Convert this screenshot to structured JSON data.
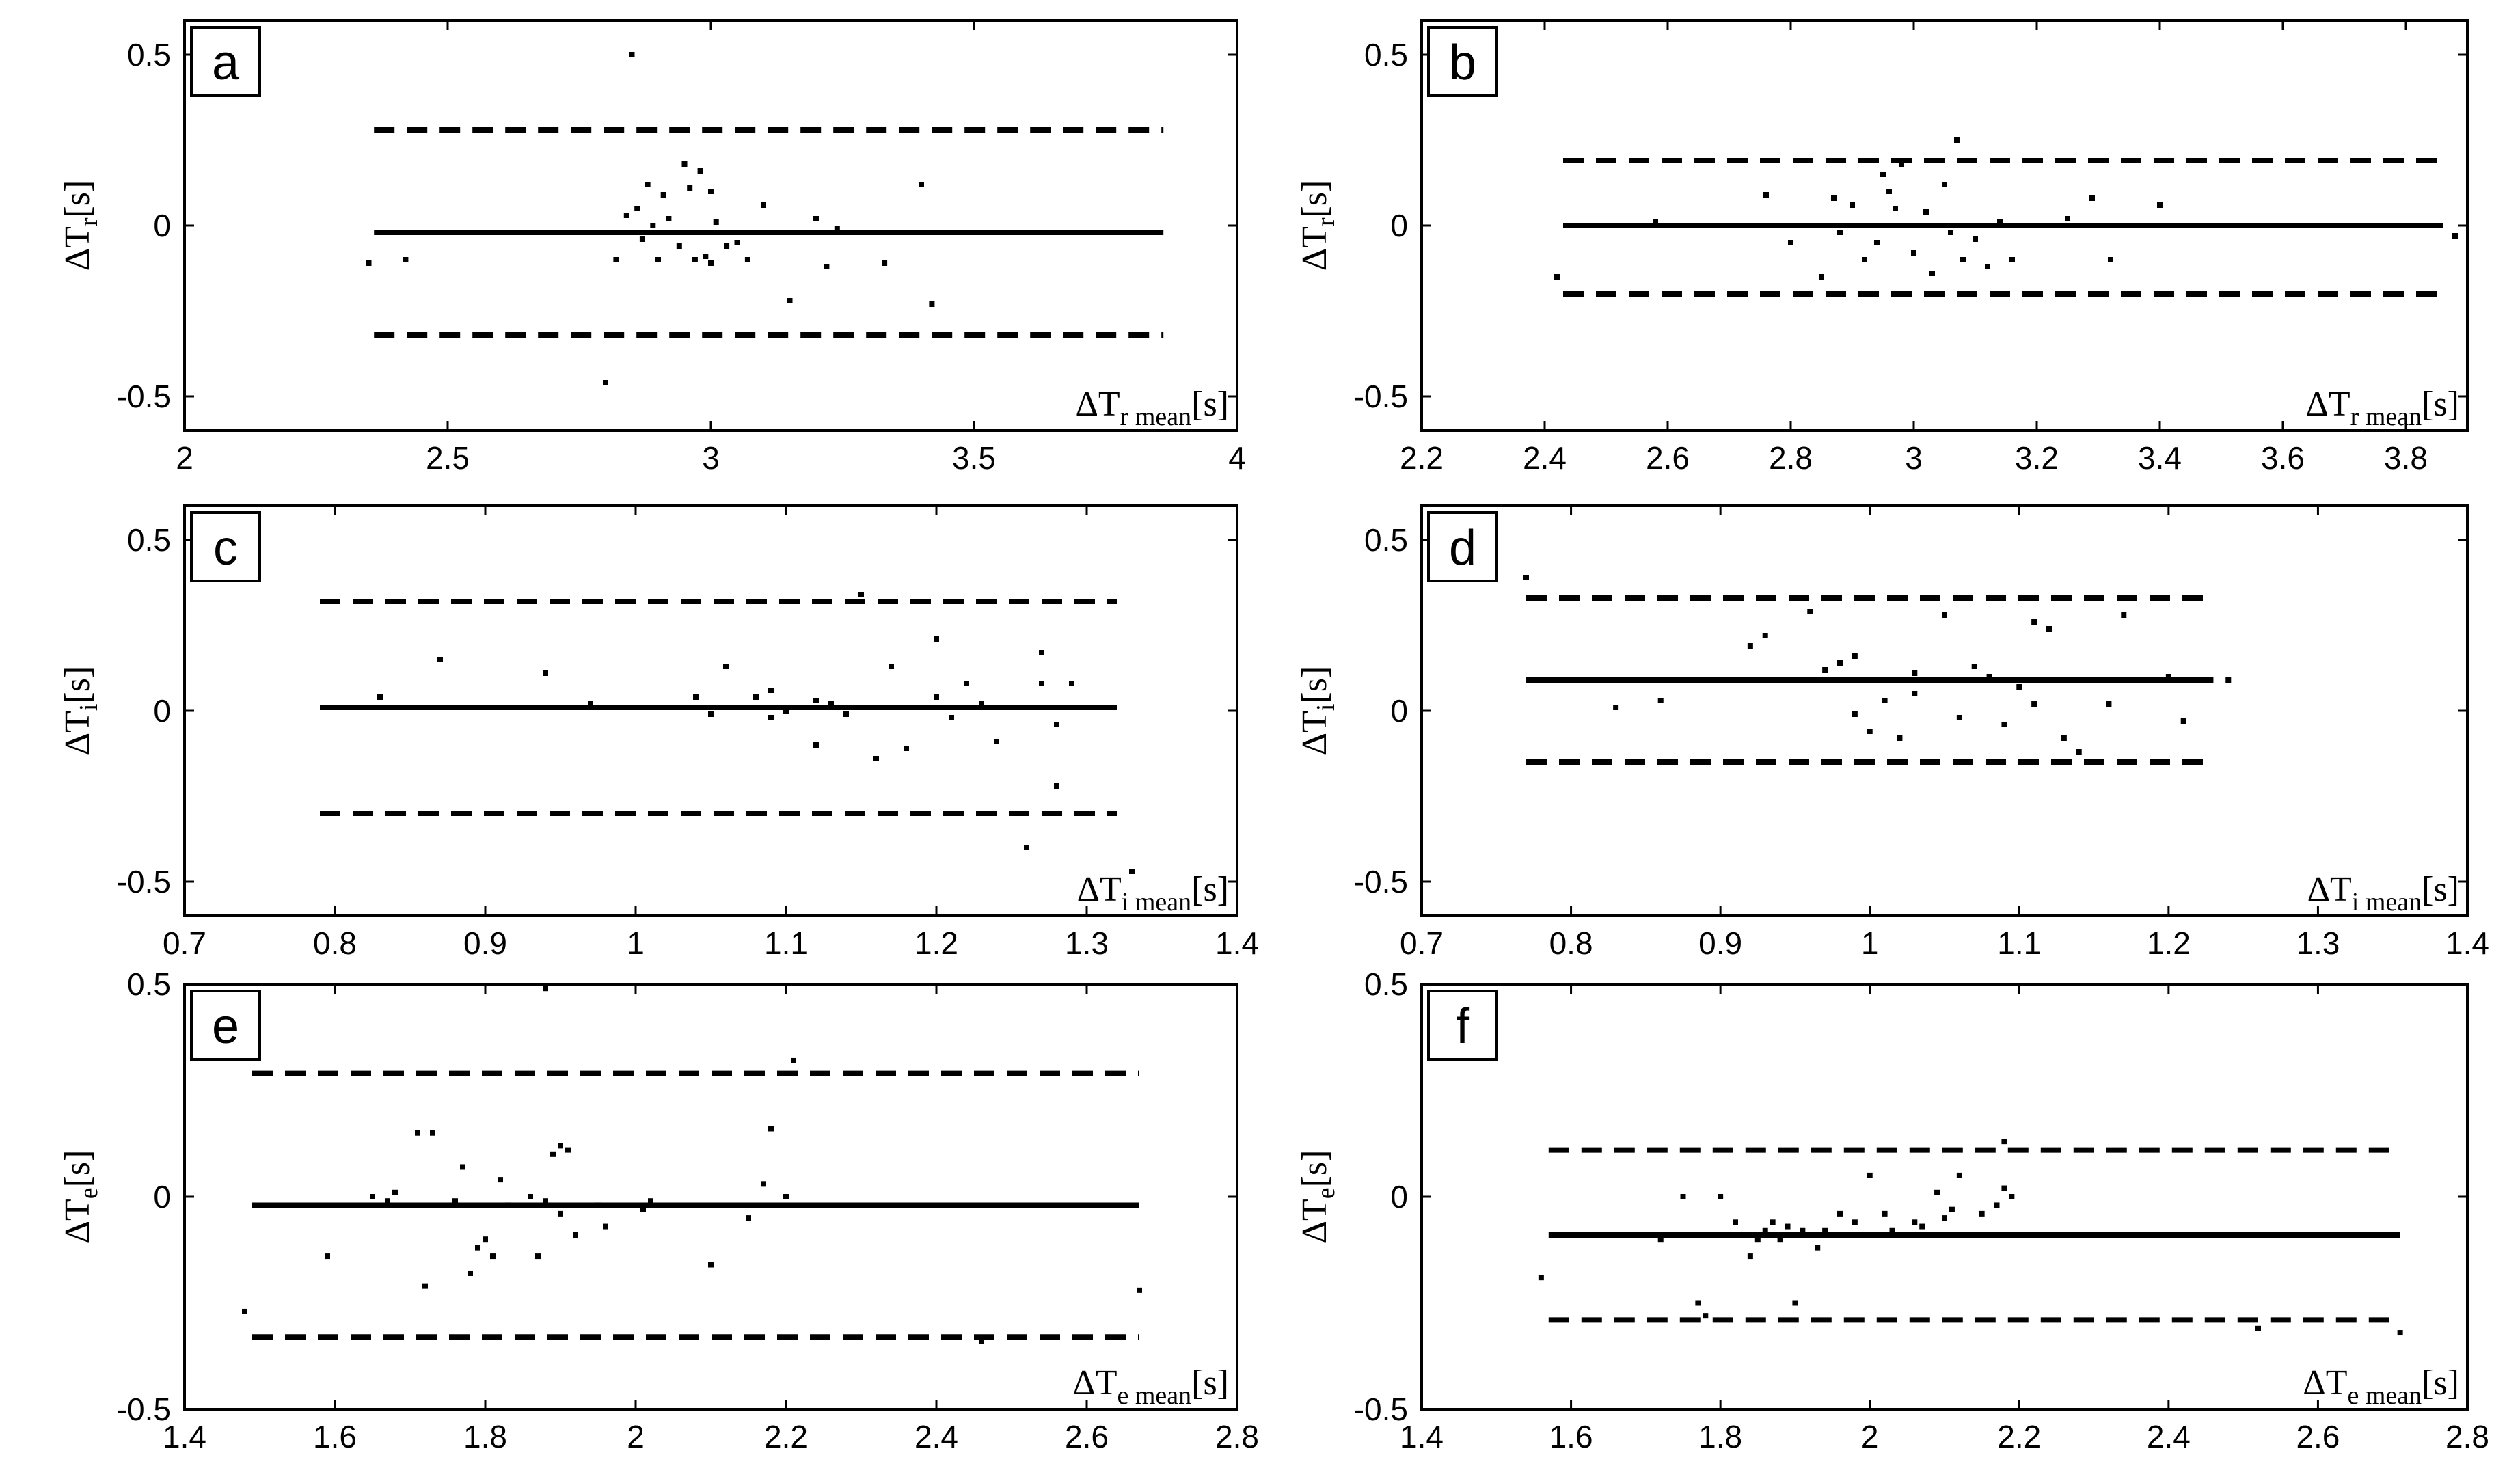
{
  "chart_data": [
    {
      "type": "scatter",
      "panel": "a",
      "xlim": [
        2,
        4
      ],
      "ylim": [
        -0.6,
        0.6
      ],
      "xticks": [
        "2",
        "2.5",
        "3",
        "3.5",
        "4"
      ],
      "yticks": [
        "0.5",
        "0",
        "-0.5"
      ],
      "ylabel": {
        "base": "ΔT",
        "sub": "r",
        "unit": "[s]"
      },
      "xlabel": {
        "base": "ΔT",
        "sub": "r mean",
        "unit": "[s]"
      },
      "mean": -0.02,
      "upper": 0.28,
      "lower": -0.32,
      "line_x": [
        2.36,
        3.86
      ],
      "points": [
        [
          2.35,
          -0.11
        ],
        [
          2.42,
          -0.1
        ],
        [
          2.8,
          -0.46
        ],
        [
          2.82,
          -0.1
        ],
        [
          2.84,
          0.03
        ],
        [
          2.85,
          0.5
        ],
        [
          2.86,
          0.05
        ],
        [
          2.87,
          -0.04
        ],
        [
          2.88,
          0.12
        ],
        [
          2.89,
          0.0
        ],
        [
          2.9,
          -0.1
        ],
        [
          2.91,
          0.09
        ],
        [
          2.92,
          0.02
        ],
        [
          2.94,
          -0.06
        ],
        [
          2.95,
          0.18
        ],
        [
          2.96,
          0.11
        ],
        [
          2.97,
          -0.1
        ],
        [
          2.98,
          0.16
        ],
        [
          2.99,
          -0.09
        ],
        [
          3.0,
          0.1
        ],
        [
          3.0,
          -0.11
        ],
        [
          3.01,
          0.01
        ],
        [
          3.03,
          -0.06
        ],
        [
          3.05,
          -0.05
        ],
        [
          3.07,
          -0.1
        ],
        [
          3.1,
          0.06
        ],
        [
          3.15,
          -0.22
        ],
        [
          3.2,
          0.02
        ],
        [
          3.22,
          -0.12
        ],
        [
          3.24,
          -0.01
        ],
        [
          3.33,
          -0.11
        ],
        [
          3.4,
          0.12
        ],
        [
          3.42,
          -0.23
        ]
      ]
    },
    {
      "type": "scatter",
      "panel": "b",
      "xlim": [
        2.2,
        3.9
      ],
      "ylim": [
        -0.6,
        0.6
      ],
      "xticks": [
        "2.2",
        "2.4",
        "2.6",
        "2.8",
        "3",
        "3.2",
        "3.4",
        "3.6",
        "3.8"
      ],
      "yticks": [
        "0.5",
        "0",
        "-0.5"
      ],
      "ylabel": {
        "base": "ΔT",
        "sub": "r",
        "unit": "[s]"
      },
      "xlabel": {
        "base": "ΔT",
        "sub": "r mean",
        "unit": "[s]"
      },
      "mean": 0.0,
      "upper": 0.19,
      "lower": -0.2,
      "line_x": [
        2.43,
        3.86
      ],
      "points": [
        [
          2.42,
          -0.15
        ],
        [
          2.58,
          0.01
        ],
        [
          2.76,
          0.09
        ],
        [
          2.8,
          -0.05
        ],
        [
          2.83,
          0.0
        ],
        [
          2.85,
          -0.15
        ],
        [
          2.87,
          0.08
        ],
        [
          2.88,
          -0.02
        ],
        [
          2.9,
          0.06
        ],
        [
          2.92,
          -0.1
        ],
        [
          2.94,
          -0.05
        ],
        [
          2.95,
          0.15
        ],
        [
          2.96,
          0.1
        ],
        [
          2.97,
          0.05
        ],
        [
          2.98,
          0.18
        ],
        [
          3.0,
          -0.08
        ],
        [
          3.02,
          0.04
        ],
        [
          3.03,
          -0.14
        ],
        [
          3.05,
          0.12
        ],
        [
          3.06,
          -0.02
        ],
        [
          3.07,
          0.25
        ],
        [
          3.08,
          -0.1
        ],
        [
          3.1,
          -0.04
        ],
        [
          3.12,
          -0.12
        ],
        [
          3.14,
          0.01
        ],
        [
          3.16,
          -0.1
        ],
        [
          3.25,
          0.02
        ],
        [
          3.29,
          0.08
        ],
        [
          3.32,
          -0.1
        ],
        [
          3.4,
          0.06
        ],
        [
          3.88,
          -0.03
        ]
      ]
    },
    {
      "type": "scatter",
      "panel": "c",
      "xlim": [
        0.7,
        1.4
      ],
      "ylim": [
        -0.6,
        0.6
      ],
      "xticks": [
        "0.7",
        "0.8",
        "0.9",
        "1",
        "1.1",
        "1.2",
        "1.3",
        "1.4"
      ],
      "yticks": [
        "0.5",
        "0",
        "-0.5"
      ],
      "ylabel": {
        "base": "ΔT",
        "sub": "i",
        "unit": "[s]"
      },
      "xlabel": {
        "base": "ΔT",
        "sub": "i mean",
        "unit": "[s]"
      },
      "mean": 0.01,
      "upper": 0.32,
      "lower": -0.3,
      "line_x": [
        0.79,
        1.32
      ],
      "points": [
        [
          0.83,
          0.04
        ],
        [
          0.87,
          0.15
        ],
        [
          0.94,
          0.11
        ],
        [
          0.97,
          0.02
        ],
        [
          1.04,
          0.04
        ],
        [
          1.05,
          -0.01
        ],
        [
          1.06,
          0.13
        ],
        [
          1.08,
          0.04
        ],
        [
          1.09,
          0.06
        ],
        [
          1.09,
          -0.02
        ],
        [
          1.1,
          0.0
        ],
        [
          1.12,
          0.03
        ],
        [
          1.12,
          -0.1
        ],
        [
          1.13,
          0.02
        ],
        [
          1.14,
          -0.01
        ],
        [
          1.15,
          0.34
        ],
        [
          1.16,
          -0.14
        ],
        [
          1.17,
          0.13
        ],
        [
          1.18,
          -0.11
        ],
        [
          1.2,
          0.04
        ],
        [
          1.2,
          0.21
        ],
        [
          1.21,
          -0.02
        ],
        [
          1.22,
          0.08
        ],
        [
          1.23,
          0.02
        ],
        [
          1.24,
          -0.09
        ],
        [
          1.26,
          -0.4
        ],
        [
          1.27,
          0.08
        ],
        [
          1.27,
          0.17
        ],
        [
          1.28,
          -0.04
        ],
        [
          1.28,
          -0.22
        ],
        [
          1.29,
          0.08
        ],
        [
          1.33,
          -0.47
        ]
      ]
    },
    {
      "type": "scatter",
      "panel": "d",
      "xlim": [
        0.7,
        1.4
      ],
      "ylim": [
        -0.6,
        0.6
      ],
      "xticks": [
        "0.7",
        "0.8",
        "0.9",
        "1",
        "1.1",
        "1.2",
        "1.3",
        "1.4"
      ],
      "yticks": [
        "0.5",
        "0",
        "-0.5"
      ],
      "ylabel": {
        "base": "ΔT",
        "sub": "i",
        "unit": "[s]"
      },
      "xlabel": {
        "base": "ΔT",
        "sub": "i mean",
        "unit": "[s]"
      },
      "mean": 0.09,
      "upper": 0.33,
      "lower": -0.15,
      "line_x": [
        0.77,
        1.23
      ],
      "points": [
        [
          0.77,
          0.39
        ],
        [
          0.83,
          0.01
        ],
        [
          0.86,
          0.03
        ],
        [
          0.92,
          0.19
        ],
        [
          0.93,
          0.22
        ],
        [
          0.96,
          0.29
        ],
        [
          0.97,
          0.12
        ],
        [
          0.98,
          0.14
        ],
        [
          0.99,
          0.16
        ],
        [
          0.99,
          -0.01
        ],
        [
          1.0,
          -0.06
        ],
        [
          1.01,
          0.03
        ],
        [
          1.02,
          -0.08
        ],
        [
          1.03,
          0.05
        ],
        [
          1.03,
          0.11
        ],
        [
          1.04,
          0.09
        ],
        [
          1.05,
          0.28
        ],
        [
          1.06,
          -0.02
        ],
        [
          1.07,
          0.13
        ],
        [
          1.08,
          0.1
        ],
        [
          1.09,
          -0.04
        ],
        [
          1.1,
          0.07
        ],
        [
          1.11,
          0.26
        ],
        [
          1.11,
          0.02
        ],
        [
          1.12,
          0.24
        ],
        [
          1.13,
          -0.08
        ],
        [
          1.14,
          -0.12
        ],
        [
          1.16,
          0.02
        ],
        [
          1.17,
          0.28
        ],
        [
          1.2,
          0.1
        ],
        [
          1.21,
          -0.03
        ],
        [
          1.24,
          0.09
        ]
      ]
    },
    {
      "type": "scatter",
      "panel": "e",
      "xlim": [
        1.4,
        2.8
      ],
      "ylim": [
        -0.5,
        0.5
      ],
      "xticks": [
        "1.4",
        "1.6",
        "1.8",
        "2",
        "2.2",
        "2.4",
        "2.6",
        "2.8"
      ],
      "yticks": [
        "0.5",
        "0",
        "-0.5"
      ],
      "ylabel": {
        "base": "ΔT",
        "sub": "e",
        "unit": "[s]"
      },
      "xlabel": {
        "base": "ΔT",
        "sub": "e mean",
        "unit": "[s]"
      },
      "mean": -0.02,
      "upper": 0.29,
      "lower": -0.33,
      "line_x": [
        1.49,
        2.67
      ],
      "points": [
        [
          1.48,
          -0.27
        ],
        [
          1.59,
          -0.14
        ],
        [
          1.65,
          0.0
        ],
        [
          1.67,
          -0.01
        ],
        [
          1.68,
          0.01
        ],
        [
          1.71,
          0.15
        ],
        [
          1.72,
          -0.21
        ],
        [
          1.73,
          0.15
        ],
        [
          1.76,
          -0.01
        ],
        [
          1.77,
          0.07
        ],
        [
          1.78,
          -0.18
        ],
        [
          1.79,
          -0.12
        ],
        [
          1.8,
          -0.1
        ],
        [
          1.81,
          -0.14
        ],
        [
          1.82,
          0.04
        ],
        [
          1.83,
          -0.02
        ],
        [
          1.86,
          0.0
        ],
        [
          1.87,
          -0.14
        ],
        [
          1.88,
          -0.01
        ],
        [
          1.89,
          0.1
        ],
        [
          1.9,
          0.12
        ],
        [
          1.9,
          -0.04
        ],
        [
          1.91,
          0.11
        ],
        [
          1.92,
          -0.09
        ],
        [
          1.95,
          -0.02
        ],
        [
          1.96,
          -0.07
        ],
        [
          2.01,
          -0.03
        ],
        [
          2.02,
          -0.01
        ],
        [
          2.1,
          -0.16
        ],
        [
          2.15,
          -0.05
        ],
        [
          2.17,
          0.03
        ],
        [
          2.18,
          0.16
        ],
        [
          2.2,
          0.0
        ],
        [
          2.21,
          0.32
        ],
        [
          2.46,
          -0.34
        ],
        [
          2.67,
          -0.22
        ],
        [
          1.88,
          0.49
        ]
      ]
    },
    {
      "type": "scatter",
      "panel": "f",
      "xlim": [
        1.4,
        2.8
      ],
      "ylim": [
        -0.5,
        0.5
      ],
      "xticks": [
        "1.4",
        "1.6",
        "1.8",
        "2",
        "2.2",
        "2.4",
        "2.6",
        "2.8"
      ],
      "yticks": [
        "0.5",
        "0",
        "-0.5"
      ],
      "ylabel": {
        "base": "ΔT",
        "sub": "e",
        "unit": "[s]"
      },
      "xlabel": {
        "base": "ΔT",
        "sub": "e mean",
        "unit": "[s]"
      },
      "mean": -0.09,
      "upper": 0.11,
      "lower": -0.29,
      "line_x": [
        1.57,
        2.71
      ],
      "points": [
        [
          1.56,
          -0.19
        ],
        [
          1.72,
          -0.1
        ],
        [
          1.75,
          0.0
        ],
        [
          1.77,
          -0.25
        ],
        [
          1.78,
          -0.28
        ],
        [
          1.8,
          0.0
        ],
        [
          1.82,
          -0.06
        ],
        [
          1.84,
          -0.14
        ],
        [
          1.85,
          -0.1
        ],
        [
          1.86,
          -0.08
        ],
        [
          1.87,
          -0.06
        ],
        [
          1.88,
          -0.1
        ],
        [
          1.89,
          -0.07
        ],
        [
          1.9,
          -0.25
        ],
        [
          1.91,
          -0.08
        ],
        [
          1.92,
          -0.09
        ],
        [
          1.93,
          -0.12
        ],
        [
          1.94,
          -0.08
        ],
        [
          1.96,
          -0.04
        ],
        [
          1.98,
          -0.06
        ],
        [
          2.0,
          0.05
        ],
        [
          2.02,
          -0.04
        ],
        [
          2.03,
          -0.08
        ],
        [
          2.06,
          -0.06
        ],
        [
          2.07,
          -0.07
        ],
        [
          2.09,
          0.01
        ],
        [
          2.1,
          -0.05
        ],
        [
          2.11,
          -0.03
        ],
        [
          2.12,
          0.05
        ],
        [
          2.15,
          -0.04
        ],
        [
          2.17,
          -0.02
        ],
        [
          2.18,
          0.02
        ],
        [
          2.18,
          0.13
        ],
        [
          2.19,
          0.0
        ],
        [
          2.52,
          -0.31
        ],
        [
          2.71,
          -0.32
        ]
      ]
    }
  ]
}
